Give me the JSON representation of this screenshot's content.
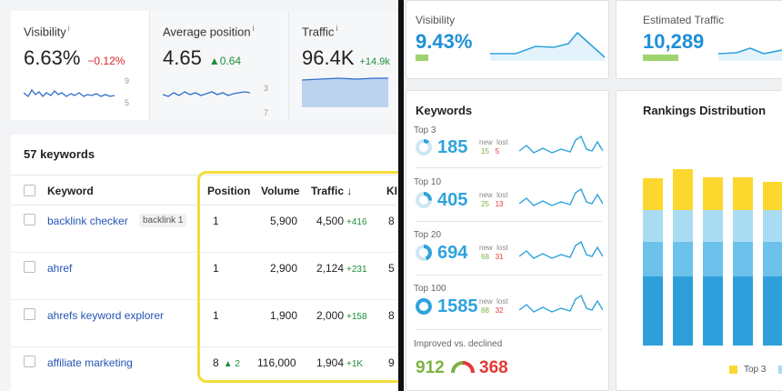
{
  "left": {
    "metrics": [
      {
        "label": "Visibility",
        "info": "i",
        "value": "6.63%",
        "delta": "−0.12%",
        "axis_top": "9",
        "axis_bottom": "5"
      },
      {
        "label": "Average position",
        "info": "i",
        "value": "4.65",
        "delta": "▲0.64",
        "axis_top": "3",
        "axis_bottom": "7"
      },
      {
        "label": "Traffic",
        "info": "i",
        "value": "96.4K",
        "delta": "+14.9k",
        "axis_top": "10"
      }
    ],
    "table": {
      "count_label": "57 keywords",
      "headers": {
        "keyword": "Keyword",
        "position": "Position",
        "volume": "Volume",
        "traffic": "Traffic ↓",
        "kd": "KI"
      },
      "rows": [
        {
          "keyword": "backlink checker",
          "tag": "backlink 1",
          "position": "1",
          "position_change": "",
          "volume": "5,900",
          "traffic": "4,500",
          "traffic_change": "+416",
          "kd": "8"
        },
        {
          "keyword": "ahref",
          "tag": "",
          "position": "1",
          "position_change": "",
          "volume": "2,900",
          "traffic": "2,124",
          "traffic_change": "+231",
          "kd": "5"
        },
        {
          "keyword": "ahrefs keyword explorer",
          "tag": "",
          "position": "1",
          "position_change": "",
          "volume": "1,900",
          "traffic": "2,000",
          "traffic_change": "+158",
          "kd": "8"
        },
        {
          "keyword": "affiliate marketing",
          "tag": "",
          "position": "8",
          "position_change": "▲ 2",
          "volume": "116,000",
          "traffic": "1,904",
          "traffic_change": "+1K",
          "kd": "9"
        }
      ]
    }
  },
  "right": {
    "visibility": {
      "label": "Visibility",
      "value": "9.43%"
    },
    "traffic": {
      "label": "Estimated Traffic",
      "value": "10,289"
    },
    "keywords": {
      "title": "Keywords",
      "groups": [
        {
          "label": "Top 3",
          "value": "185",
          "new_label": "new",
          "lost_label": "lost",
          "new": "15",
          "lost": "5"
        },
        {
          "label": "Top 10",
          "value": "405",
          "new_label": "new",
          "lost_label": "lost",
          "new": "25",
          "lost": "13"
        },
        {
          "label": "Top 20",
          "value": "694",
          "new_label": "new",
          "lost_label": "lost",
          "new": "68",
          "lost": "31"
        },
        {
          "label": "Top 100",
          "value": "1585",
          "new_label": "new",
          "lost_label": "lost",
          "new": "88",
          "lost": "32"
        }
      ],
      "improved_label": "Improved vs. declined",
      "improved": "912",
      "declined": "368"
    },
    "rankings": {
      "title": "Rankings Distribution",
      "legend": [
        "Top 3"
      ]
    }
  },
  "colors": {
    "accent_blue": "#1f8fd8",
    "positive_green": "#1e8f3a",
    "negative_red": "#d6262c",
    "highlight_yellow": "#f4dc3a",
    "bar_yellow": "#fcd82f",
    "bar_light_blue": "#a9dcf2",
    "bar_mid_blue": "#6cc2ea",
    "bar_dark_blue": "#2f9fdc"
  }
}
